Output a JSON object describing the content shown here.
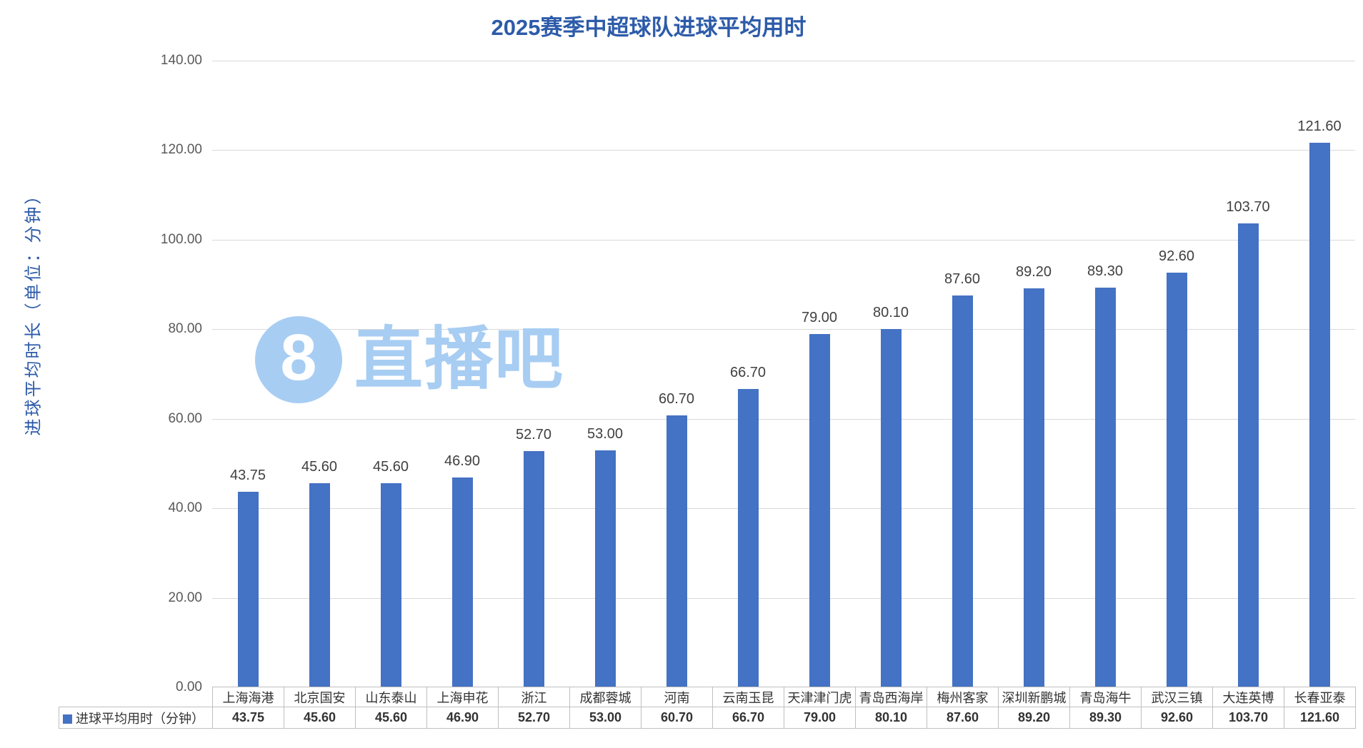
{
  "title": "2025赛季中超球队进球平均用时",
  "watermark": {
    "number": "8",
    "text": "直播吧"
  },
  "chart_data": {
    "type": "bar",
    "title": "2025赛季中超球队进球平均用时",
    "categories": [
      "上海海港",
      "北京国安",
      "山东泰山",
      "上海申花",
      "浙江",
      "成都蓉城",
      "河南",
      "云南玉昆",
      "天津津门虎",
      "青岛西海岸",
      "梅州客家",
      "深圳新鹏城",
      "青岛海牛",
      "武汉三镇",
      "大连英博",
      "长春亚泰"
    ],
    "values": [
      43.75,
      45.6,
      45.6,
      46.9,
      52.7,
      53.0,
      60.7,
      66.7,
      79.0,
      80.1,
      87.6,
      89.2,
      89.3,
      92.6,
      103.7,
      121.6
    ],
    "value_labels": [
      "43.75",
      "45.60",
      "45.60",
      "46.90",
      "52.70",
      "53.00",
      "60.70",
      "66.70",
      "79.00",
      "80.10",
      "87.60",
      "89.20",
      "89.30",
      "92.60",
      "103.70",
      "121.60"
    ],
    "series": [
      {
        "name": "进球平均用时（分钟）",
        "values": [
          43.75,
          45.6,
          45.6,
          46.9,
          52.7,
          53.0,
          60.7,
          66.7,
          79.0,
          80.1,
          87.6,
          89.2,
          89.3,
          92.6,
          103.7,
          121.6
        ]
      }
    ],
    "legend_label": "进球平均用时（分钟）",
    "ylabel": "进球平均时长（单位：分钟）",
    "xlabel": "",
    "ylim": [
      0,
      140
    ],
    "ytick_step": 20,
    "ytick_labels": [
      "0.00",
      "20.00",
      "40.00",
      "60.00",
      "80.00",
      "100.00",
      "120.00",
      "140.00"
    ],
    "grid": true,
    "legend_position": "bottom-table-left"
  },
  "colors": {
    "bar": "#4472C4",
    "title": "#2D5BA9",
    "axis_title": "#2D5BA9",
    "tick_label": "#595959",
    "data_label": "#404040",
    "gridline": "#D9D9D9",
    "table_border": "#BFBFBF",
    "watermark": "#A8CDF3",
    "background": "#FFFFFF"
  }
}
